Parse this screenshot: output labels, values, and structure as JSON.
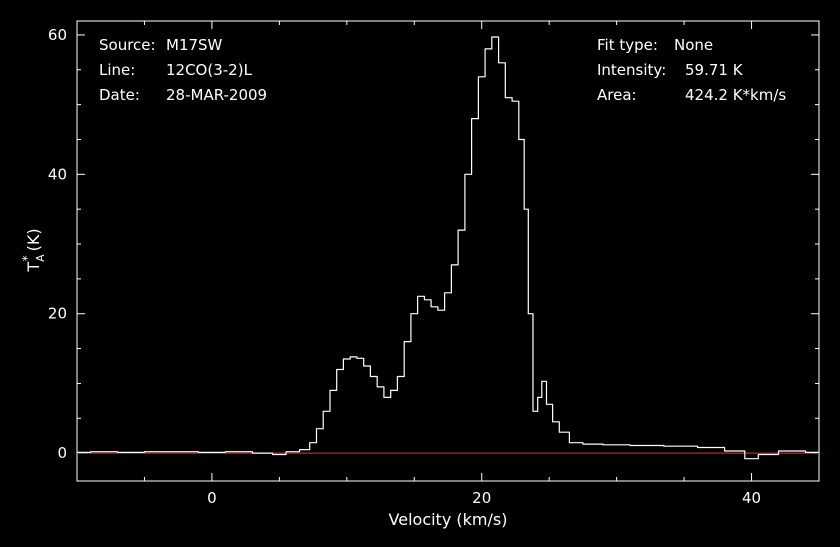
{
  "chart_data": {
    "type": "line",
    "xlabel": "Velocity (km/s)",
    "ylabel_main": "T",
    "ylabel_sub": "A",
    "ylabel_sup": "*",
    "ylabel_unit": "(K)",
    "xlim": [
      -10,
      45
    ],
    "ylim": [
      -4,
      62
    ],
    "xticks": [
      0,
      20,
      40
    ],
    "xtick_labels": [
      "0",
      "20",
      "40"
    ],
    "yticks": [
      0,
      20,
      40,
      60
    ],
    "ytick_labels": [
      "0",
      "20",
      "40",
      "60"
    ],
    "baseline": 0,
    "baseline_color": "#cc2020",
    "line_color": "#ffffff",
    "grid": false,
    "series": [
      {
        "x": [
          -10,
          -8,
          -6,
          -4,
          -2,
          0,
          2,
          4,
          5,
          6,
          7,
          7.5,
          8,
          8.5,
          9,
          9.5,
          10,
          10.5,
          11,
          11.5,
          12,
          12.5,
          13,
          13.5,
          14,
          14.5,
          15,
          15.5,
          16,
          16.5,
          17,
          17.5,
          18,
          18.5,
          19,
          19.5,
          20,
          20.5,
          21,
          21.5,
          22,
          22.5,
          23,
          23.3,
          23.6,
          24,
          24.3,
          24.6,
          25,
          25.5,
          26,
          27,
          28,
          30,
          32,
          35,
          37,
          39,
          40,
          41,
          43,
          45
        ],
        "y": [
          0.1,
          0.2,
          0.1,
          0.2,
          0.2,
          0.1,
          0.2,
          0.0,
          -0.2,
          0.2,
          0.5,
          1.5,
          3.5,
          6,
          9,
          12,
          13.5,
          13.8,
          13.6,
          12.5,
          11,
          9.5,
          8,
          9,
          11,
          16,
          20,
          22.5,
          22,
          21,
          20.5,
          23,
          27,
          32,
          40,
          48,
          54,
          58,
          59.7,
          56,
          51,
          50.5,
          45,
          35,
          20,
          6,
          8,
          10.3,
          7,
          4.5,
          3,
          1.5,
          1.3,
          1.2,
          1.1,
          1.0,
          0.8,
          0.3,
          -0.8,
          -0.2,
          0.3,
          0.1
        ]
      }
    ]
  },
  "info": {
    "source_label": "Source:",
    "source_value": "M17SW",
    "line_label": "Line:",
    "line_value": "12CO(3-2)L",
    "date_label": "Date:",
    "date_value": "28-MAR-2009",
    "fit_label": "Fit type:",
    "fit_value": "None",
    "intensity_label": "Intensity:",
    "intensity_value": "59.71 K",
    "area_label": "Area:",
    "area_value": "424.2 K*km/s"
  }
}
